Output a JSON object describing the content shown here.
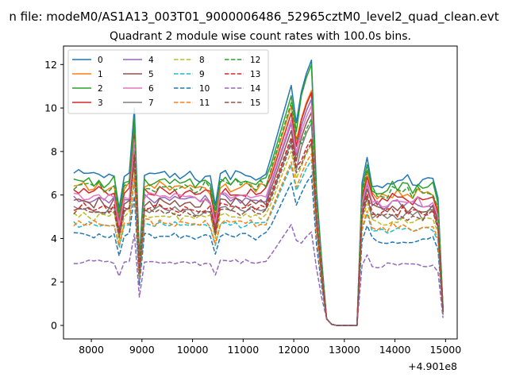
{
  "chart_data": {
    "type": "line",
    "suptitle": "n file: modeM0/AS1A13_003T01_9000006486_52965cztM0_level2_quad_clean.evt",
    "title": "Quadrant 2 module wise count rates with 100.0s bins.",
    "xlabel": "",
    "ylabel": "",
    "x_offset_label": "+4.901e8",
    "xlim": [
      7450,
      15230
    ],
    "ylim": [
      -0.62,
      12.85
    ],
    "x_ticks": [
      8000,
      9000,
      10000,
      11000,
      12000,
      13000,
      14000,
      15000
    ],
    "y_ticks": [
      0,
      2,
      4,
      6,
      8,
      10,
      12
    ],
    "legend_position": "upper-left",
    "grid": false,
    "x_start": 7650,
    "x_step": 100,
    "x_count": 74,
    "series": [
      {
        "name": "0",
        "color": "#1f77b4",
        "dashed": false,
        "level": 6.9,
        "peak": 12.2
      },
      {
        "name": "1",
        "color": "#ff7f0e",
        "dashed": false,
        "level": 6.3,
        "peak": 10.8
      },
      {
        "name": "2",
        "color": "#2ca02c",
        "dashed": false,
        "level": 6.6,
        "peak": 12.0
      },
      {
        "name": "3",
        "color": "#d62728",
        "dashed": false,
        "level": 6.1,
        "peak": 10.7
      },
      {
        "name": "4",
        "color": "#9467bd",
        "dashed": false,
        "level": 5.8,
        "peak": 10.4
      },
      {
        "name": "5",
        "color": "#8c564b",
        "dashed": false,
        "level": 5.6,
        "peak": 9.8
      },
      {
        "name": "6",
        "color": "#e377c2",
        "dashed": false,
        "level": 5.9,
        "peak": 10.1
      },
      {
        "name": "7",
        "color": "#7f7f7f",
        "dashed": false,
        "level": 5.3,
        "peak": 9.3
      },
      {
        "name": "8",
        "color": "#bcbd22",
        "dashed": true,
        "level": 5.0,
        "peak": 8.3
      },
      {
        "name": "9",
        "color": "#17becf",
        "dashed": true,
        "level": 4.6,
        "peak": 7.6
      },
      {
        "name": "10",
        "color": "#1f77b4",
        "dashed": true,
        "level": 4.1,
        "peak": 6.9
      },
      {
        "name": "11",
        "color": "#ff7f0e",
        "dashed": true,
        "level": 4.7,
        "peak": 7.9
      },
      {
        "name": "12",
        "color": "#2ca02c",
        "dashed": true,
        "level": 6.4,
        "peak": 9.5
      },
      {
        "name": "13",
        "color": "#d62728",
        "dashed": true,
        "level": 5.4,
        "peak": 8.6
      },
      {
        "name": "14",
        "color": "#9467bd",
        "dashed": true,
        "level": 2.9,
        "peak": 4.3
      },
      {
        "name": "15",
        "color": "#8c564b",
        "dashed": true,
        "level": 5.2,
        "peak": 8.4
      }
    ]
  }
}
